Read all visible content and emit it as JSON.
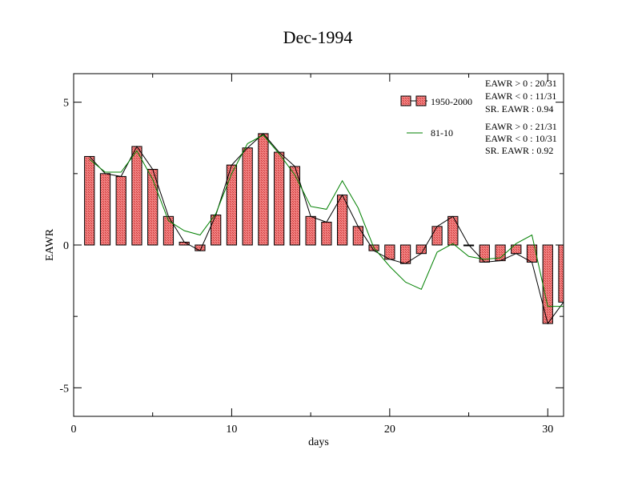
{
  "chart_data": {
    "type": "bar",
    "title": "Dec-1994",
    "xlabel": "days",
    "ylabel": "EAWR",
    "xlim": [
      0,
      31
    ],
    "ylim": [
      -6,
      6
    ],
    "x_ticks": [
      0,
      10,
      20,
      30
    ],
    "y_ticks": [
      -5,
      0,
      5
    ],
    "grid": false,
    "legend_position": "top-right",
    "colors": {
      "bar_fill": "#f08080",
      "bar_hatch": "#cc3333",
      "line1": "#000000",
      "line2": "#008000"
    },
    "series": [
      {
        "name": "1950-2000",
        "kind": "bar",
        "x": [
          1,
          2,
          3,
          4,
          5,
          6,
          7,
          8,
          9,
          10,
          11,
          12,
          13,
          14,
          15,
          16,
          17,
          18,
          19,
          20,
          21,
          22,
          23,
          24,
          25,
          26,
          27,
          28,
          29,
          30,
          31
        ],
        "values": [
          3.1,
          2.5,
          2.4,
          3.45,
          2.65,
          1.0,
          0.1,
          -0.2,
          1.05,
          2.8,
          3.4,
          3.9,
          3.25,
          2.75,
          1.0,
          0.8,
          1.75,
          0.65,
          -0.2,
          -0.5,
          -0.65,
          -0.3,
          0.65,
          1.0,
          0.0,
          -0.6,
          -0.55,
          -0.3,
          -0.6,
          -2.75,
          -2.0
        ]
      },
      {
        "name": "81-10",
        "kind": "line",
        "x": [
          1,
          2,
          3,
          4,
          5,
          6,
          7,
          8,
          9,
          10,
          11,
          12,
          13,
          14,
          15,
          16,
          17,
          18,
          19,
          20,
          21,
          22,
          23,
          24,
          25,
          26,
          27,
          28,
          29,
          30,
          31
        ],
        "values": [
          3.0,
          2.55,
          2.55,
          3.3,
          2.3,
          0.85,
          0.5,
          0.35,
          1.1,
          2.5,
          3.55,
          3.85,
          3.2,
          2.45,
          1.35,
          1.25,
          2.25,
          1.3,
          -0.1,
          -0.75,
          -1.3,
          -1.55,
          -0.25,
          0.05,
          -0.4,
          -0.5,
          -0.45,
          0.05,
          0.35,
          -2.15,
          -2.15
        ]
      }
    ],
    "stats": [
      [
        "EAWR > 0 : 20/31",
        "EAWR < 0 : 11/31",
        "SR. EAWR :  0.94"
      ],
      [
        "EAWR > 0 : 21/31",
        "EAWR < 0 : 10/31",
        "SR. EAWR :  0.92"
      ]
    ]
  }
}
